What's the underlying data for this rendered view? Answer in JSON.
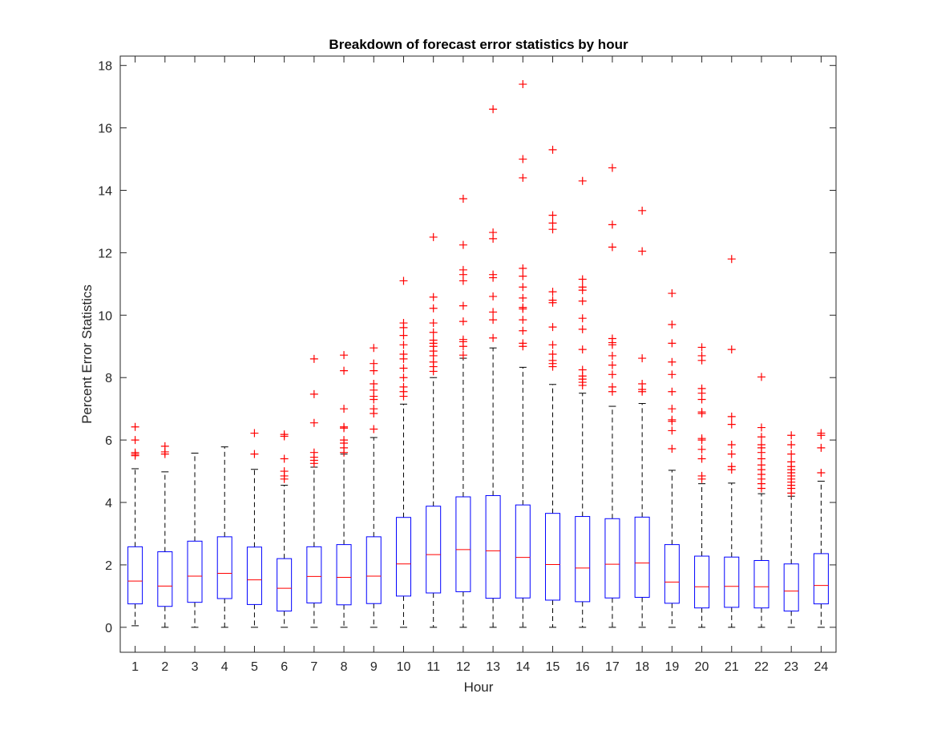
{
  "chart_data": {
    "type": "box",
    "title": "Breakdown of forecast error statistics by hour",
    "xlabel": "Hour",
    "ylabel": "Percent Error Statistics",
    "categories": [
      "1",
      "2",
      "3",
      "4",
      "5",
      "6",
      "7",
      "8",
      "9",
      "10",
      "11",
      "12",
      "13",
      "14",
      "15",
      "16",
      "17",
      "18",
      "19",
      "20",
      "21",
      "22",
      "23",
      "24"
    ],
    "ylim": [
      -0.8,
      18.3
    ],
    "yticks": [
      0,
      2,
      4,
      6,
      8,
      10,
      12,
      14,
      16,
      18
    ],
    "grid": false,
    "colors": {
      "box": "#0000ff",
      "median": "#ff0000",
      "whisker": "#000000",
      "outlier": "#ff0000"
    },
    "boxes": [
      {
        "hour": "1",
        "min": 0.05,
        "q1": 0.75,
        "median": 1.48,
        "q3": 2.58,
        "max": 5.08,
        "outliers": [
          5.5,
          5.55,
          5.6,
          6.0,
          6.42
        ]
      },
      {
        "hour": "2",
        "min": 0.0,
        "q1": 0.67,
        "median": 1.32,
        "q3": 2.42,
        "max": 4.98,
        "outliers": [
          5.55,
          5.62,
          5.8
        ]
      },
      {
        "hour": "3",
        "min": 0.0,
        "q1": 0.8,
        "median": 1.64,
        "q3": 2.76,
        "max": 5.58,
        "outliers": []
      },
      {
        "hour": "4",
        "min": 0.0,
        "q1": 0.92,
        "median": 1.73,
        "q3": 2.9,
        "max": 5.78,
        "outliers": []
      },
      {
        "hour": "5",
        "min": 0.0,
        "q1": 0.73,
        "median": 1.52,
        "q3": 2.57,
        "max": 5.06,
        "outliers": [
          5.55,
          6.22
        ]
      },
      {
        "hour": "6",
        "min": 0.0,
        "q1": 0.52,
        "median": 1.25,
        "q3": 2.2,
        "max": 4.55,
        "outliers": [
          4.75,
          4.85,
          5.0,
          5.4,
          6.12,
          6.18
        ]
      },
      {
        "hour": "7",
        "min": 0.0,
        "q1": 0.78,
        "median": 1.63,
        "q3": 2.58,
        "max": 5.13,
        "outliers": [
          5.25,
          5.35,
          5.45,
          5.6,
          6.55,
          7.47,
          8.6
        ]
      },
      {
        "hour": "8",
        "min": 0.0,
        "q1": 0.72,
        "median": 1.6,
        "q3": 2.65,
        "max": 5.55,
        "outliers": [
          5.6,
          5.75,
          5.9,
          6.0,
          6.38,
          6.42,
          7.0,
          8.22,
          8.72
        ]
      },
      {
        "hour": "9",
        "min": 0.0,
        "q1": 0.76,
        "median": 1.64,
        "q3": 2.9,
        "max": 6.08,
        "outliers": [
          6.35,
          6.85,
          7.0,
          7.3,
          7.4,
          7.6,
          7.8,
          8.22,
          8.45,
          8.95
        ]
      },
      {
        "hour": "10",
        "min": 0.0,
        "q1": 1.0,
        "median": 2.03,
        "q3": 3.52,
        "max": 7.15,
        "outliers": [
          7.4,
          7.55,
          7.7,
          8.0,
          8.3,
          8.6,
          8.75,
          9.05,
          9.35,
          9.6,
          9.75,
          11.1
        ]
      },
      {
        "hour": "11",
        "min": 0.0,
        "q1": 1.1,
        "median": 2.33,
        "q3": 3.88,
        "max": 8.0,
        "outliers": [
          8.2,
          8.35,
          8.5,
          8.7,
          8.85,
          9.0,
          9.1,
          9.2,
          9.45,
          9.75,
          10.22,
          10.58,
          12.5
        ]
      },
      {
        "hour": "12",
        "min": 0.0,
        "q1": 1.14,
        "median": 2.49,
        "q3": 4.18,
        "max": 8.62,
        "outliers": [
          8.72,
          9.0,
          9.15,
          9.22,
          9.8,
          10.3,
          11.1,
          11.3,
          11.45,
          12.25,
          13.73
        ]
      },
      {
        "hour": "13",
        "min": 0.0,
        "q1": 0.93,
        "median": 2.45,
        "q3": 4.22,
        "max": 8.95,
        "outliers": [
          9.27,
          9.85,
          10.1,
          10.6,
          11.2,
          11.3,
          12.45,
          12.65,
          16.6
        ]
      },
      {
        "hour": "14",
        "min": 0.0,
        "q1": 0.94,
        "median": 2.24,
        "q3": 3.92,
        "max": 8.33,
        "outliers": [
          9.0,
          9.1,
          9.5,
          9.85,
          10.2,
          10.25,
          10.55,
          10.9,
          11.25,
          11.5,
          14.4,
          15.0,
          17.4
        ]
      },
      {
        "hour": "15",
        "min": 0.0,
        "q1": 0.87,
        "median": 2.01,
        "q3": 3.65,
        "max": 7.78,
        "outliers": [
          8.35,
          8.45,
          8.55,
          8.75,
          9.05,
          9.62,
          10.4,
          10.48,
          10.75,
          12.75,
          12.95,
          13.2,
          15.3
        ]
      },
      {
        "hour": "16",
        "min": 0.0,
        "q1": 0.82,
        "median": 1.9,
        "q3": 3.55,
        "max": 7.5,
        "outliers": [
          7.75,
          7.85,
          7.95,
          8.05,
          8.25,
          8.9,
          9.55,
          9.9,
          10.45,
          10.8,
          10.9,
          11.15,
          14.3
        ]
      },
      {
        "hour": "17",
        "min": 0.0,
        "q1": 0.94,
        "median": 2.02,
        "q3": 3.48,
        "max": 7.08,
        "outliers": [
          7.55,
          7.7,
          8.1,
          8.4,
          8.7,
          9.05,
          9.12,
          9.25,
          12.18,
          12.9,
          14.72
        ]
      },
      {
        "hour": "18",
        "min": 0.0,
        "q1": 0.96,
        "median": 2.06,
        "q3": 3.53,
        "max": 7.17,
        "outliers": [
          7.55,
          7.62,
          7.8,
          8.62,
          12.05,
          13.35
        ]
      },
      {
        "hour": "19",
        "min": 0.0,
        "q1": 0.77,
        "median": 1.45,
        "q3": 2.65,
        "max": 5.03,
        "outliers": [
          5.72,
          6.3,
          6.6,
          6.65,
          7.0,
          7.55,
          8.1,
          8.5,
          9.1,
          9.7,
          10.7
        ]
      },
      {
        "hour": "20",
        "min": 0.0,
        "q1": 0.62,
        "median": 1.3,
        "q3": 2.28,
        "max": 4.6,
        "outliers": [
          4.75,
          4.85,
          5.4,
          5.7,
          6.0,
          6.05,
          6.85,
          6.9,
          7.3,
          7.5,
          7.65,
          8.55,
          8.7,
          8.97
        ]
      },
      {
        "hour": "21",
        "min": 0.0,
        "q1": 0.64,
        "median": 1.31,
        "q3": 2.25,
        "max": 4.62,
        "outliers": [
          5.05,
          5.15,
          5.55,
          5.85,
          6.5,
          6.75,
          8.9,
          11.8
        ]
      },
      {
        "hour": "22",
        "min": 0.0,
        "q1": 0.62,
        "median": 1.3,
        "q3": 2.14,
        "max": 4.28,
        "outliers": [
          4.45,
          4.6,
          4.75,
          4.9,
          5.05,
          5.2,
          5.4,
          5.6,
          5.75,
          5.85,
          6.1,
          6.4,
          8.02
        ]
      },
      {
        "hour": "23",
        "min": 0.0,
        "q1": 0.52,
        "median": 1.16,
        "q3": 2.03,
        "max": 4.2,
        "outliers": [
          4.3,
          4.45,
          4.55,
          4.65,
          4.75,
          4.85,
          4.95,
          5.05,
          5.15,
          5.3,
          5.55,
          5.85,
          6.15
        ]
      },
      {
        "hour": "24",
        "min": 0.0,
        "q1": 0.75,
        "median": 1.34,
        "q3": 2.36,
        "max": 4.68,
        "outliers": [
          4.95,
          5.75,
          6.15,
          6.22
        ]
      }
    ]
  }
}
